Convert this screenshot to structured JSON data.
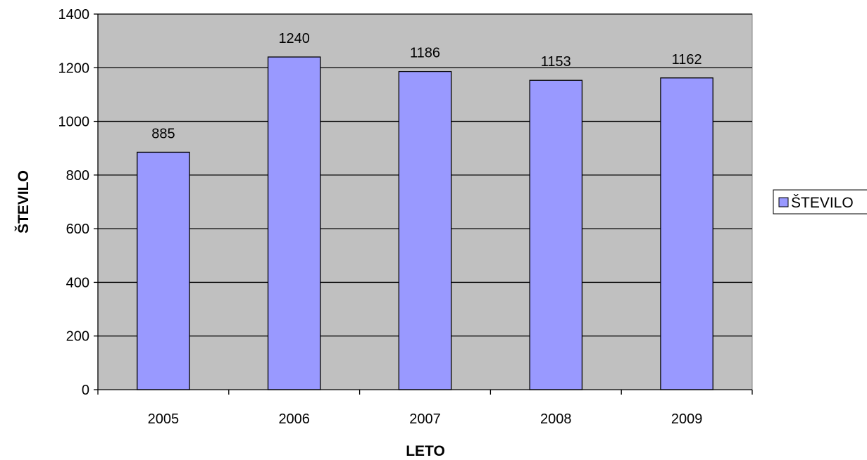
{
  "chart_data": {
    "type": "bar",
    "title": "",
    "xlabel": "LETO",
    "ylabel": "ŠTEVILO",
    "categories": [
      "2005",
      "2006",
      "2007",
      "2008",
      "2009"
    ],
    "series": [
      {
        "name": "ŠTEVILO",
        "values": [
          885,
          1240,
          1186,
          1153,
          1162
        ]
      }
    ],
    "ylim": [
      0,
      1400
    ],
    "yticks": [
      0,
      200,
      400,
      600,
      800,
      1000,
      1200,
      1400
    ],
    "grid": true,
    "data_labels": true,
    "legend_position": "right",
    "colors": {
      "bar_fill": "#9999ff",
      "bar_stroke": "#000000",
      "plot_background": "#c0c0c0",
      "gridline": "#000000"
    }
  }
}
